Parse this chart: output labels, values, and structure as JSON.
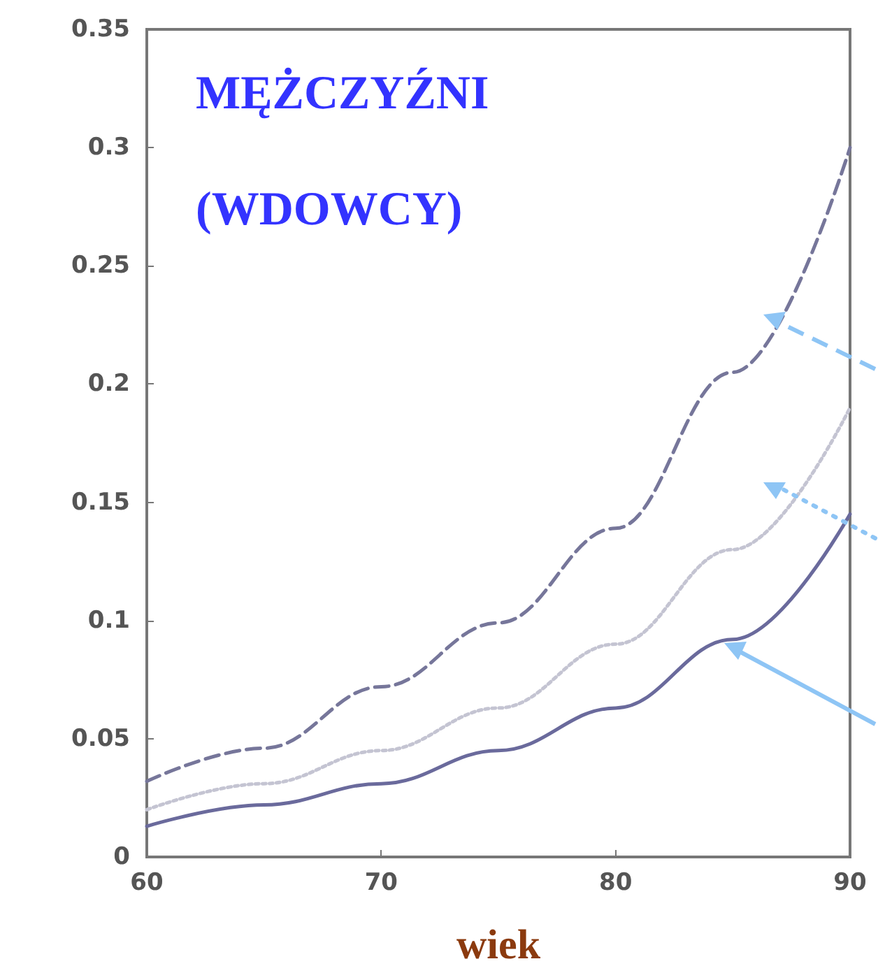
{
  "chart_data": {
    "type": "line",
    "title": "MĘŻCZYŹNI",
    "subtitle": "(WDOWCY)",
    "xlabel": "wiek",
    "x": [
      60,
      65,
      70,
      75,
      80,
      85,
      90
    ],
    "series": [
      {
        "color": "#76769a",
        "line_style": "dashed",
        "values": [
          0.032,
          0.046,
          0.072,
          0.099,
          0.139,
          0.205,
          0.3
        ]
      },
      {
        "color": "#c4c4d2",
        "line_style": "dotted",
        "values": [
          0.02,
          0.031,
          0.045,
          0.063,
          0.09,
          0.13,
          0.19
        ]
      },
      {
        "color": "#6a6a9c",
        "line_style": "solid",
        "values": [
          0.013,
          0.022,
          0.031,
          0.045,
          0.063,
          0.092,
          0.145
        ]
      }
    ],
    "xlim": [
      60,
      90
    ],
    "xticks": [
      60,
      70,
      80,
      90
    ],
    "ylim": [
      0,
      0.35
    ],
    "yticks": [
      0,
      0.05,
      0.1,
      0.15,
      0.2,
      0.25,
      0.3,
      0.35
    ],
    "grid": false,
    "marker": "none"
  }
}
